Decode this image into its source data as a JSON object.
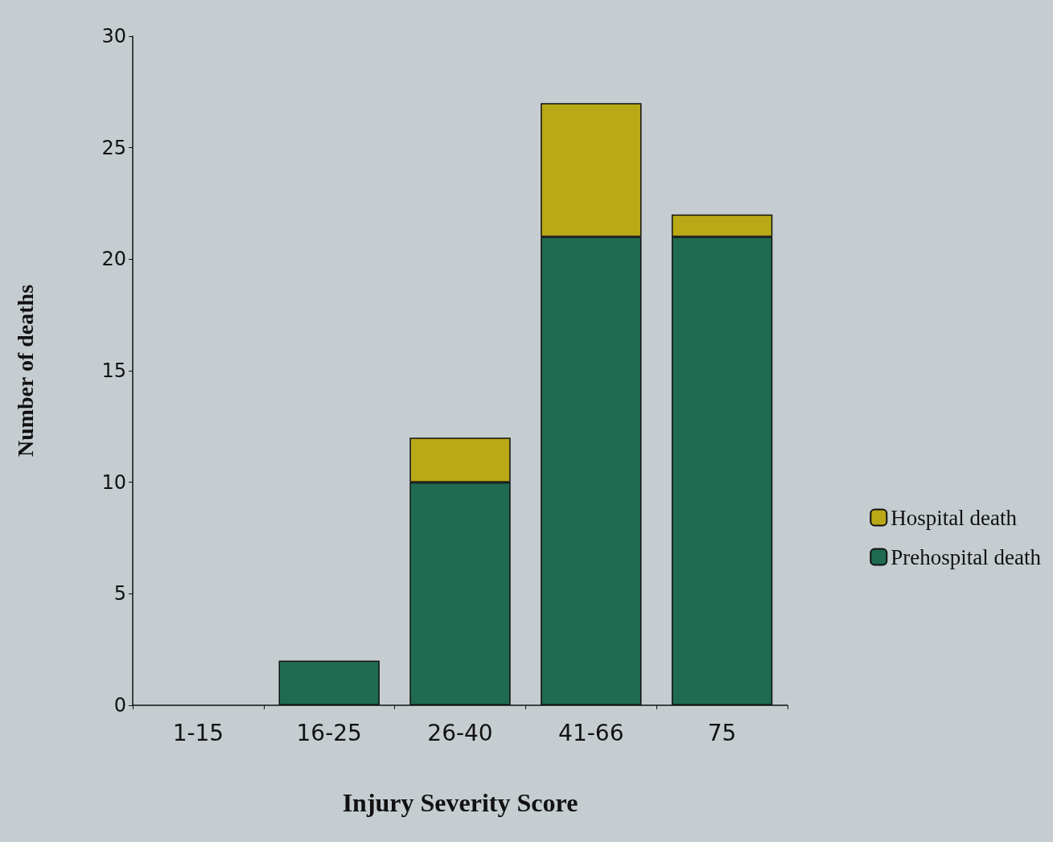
{
  "chart_data": {
    "type": "bar",
    "xlabel": "Injury Severity Score",
    "ylabel": "Number of deaths",
    "categories": [
      "1-15",
      "16-25",
      "26-40",
      "41-66",
      "75"
    ],
    "stacked": true,
    "series": [
      {
        "name": "Prehospital death",
        "color": "#1f6b52",
        "values": [
          0,
          2,
          10,
          21,
          21
        ]
      },
      {
        "name": "Hospital death",
        "color": "#b9a916",
        "values": [
          0,
          0,
          2,
          6,
          1
        ]
      }
    ],
    "ylim": [
      0,
      30
    ],
    "yticks": [
      0,
      5,
      10,
      15,
      20,
      25,
      30
    ],
    "grid": false,
    "legend": "right"
  }
}
